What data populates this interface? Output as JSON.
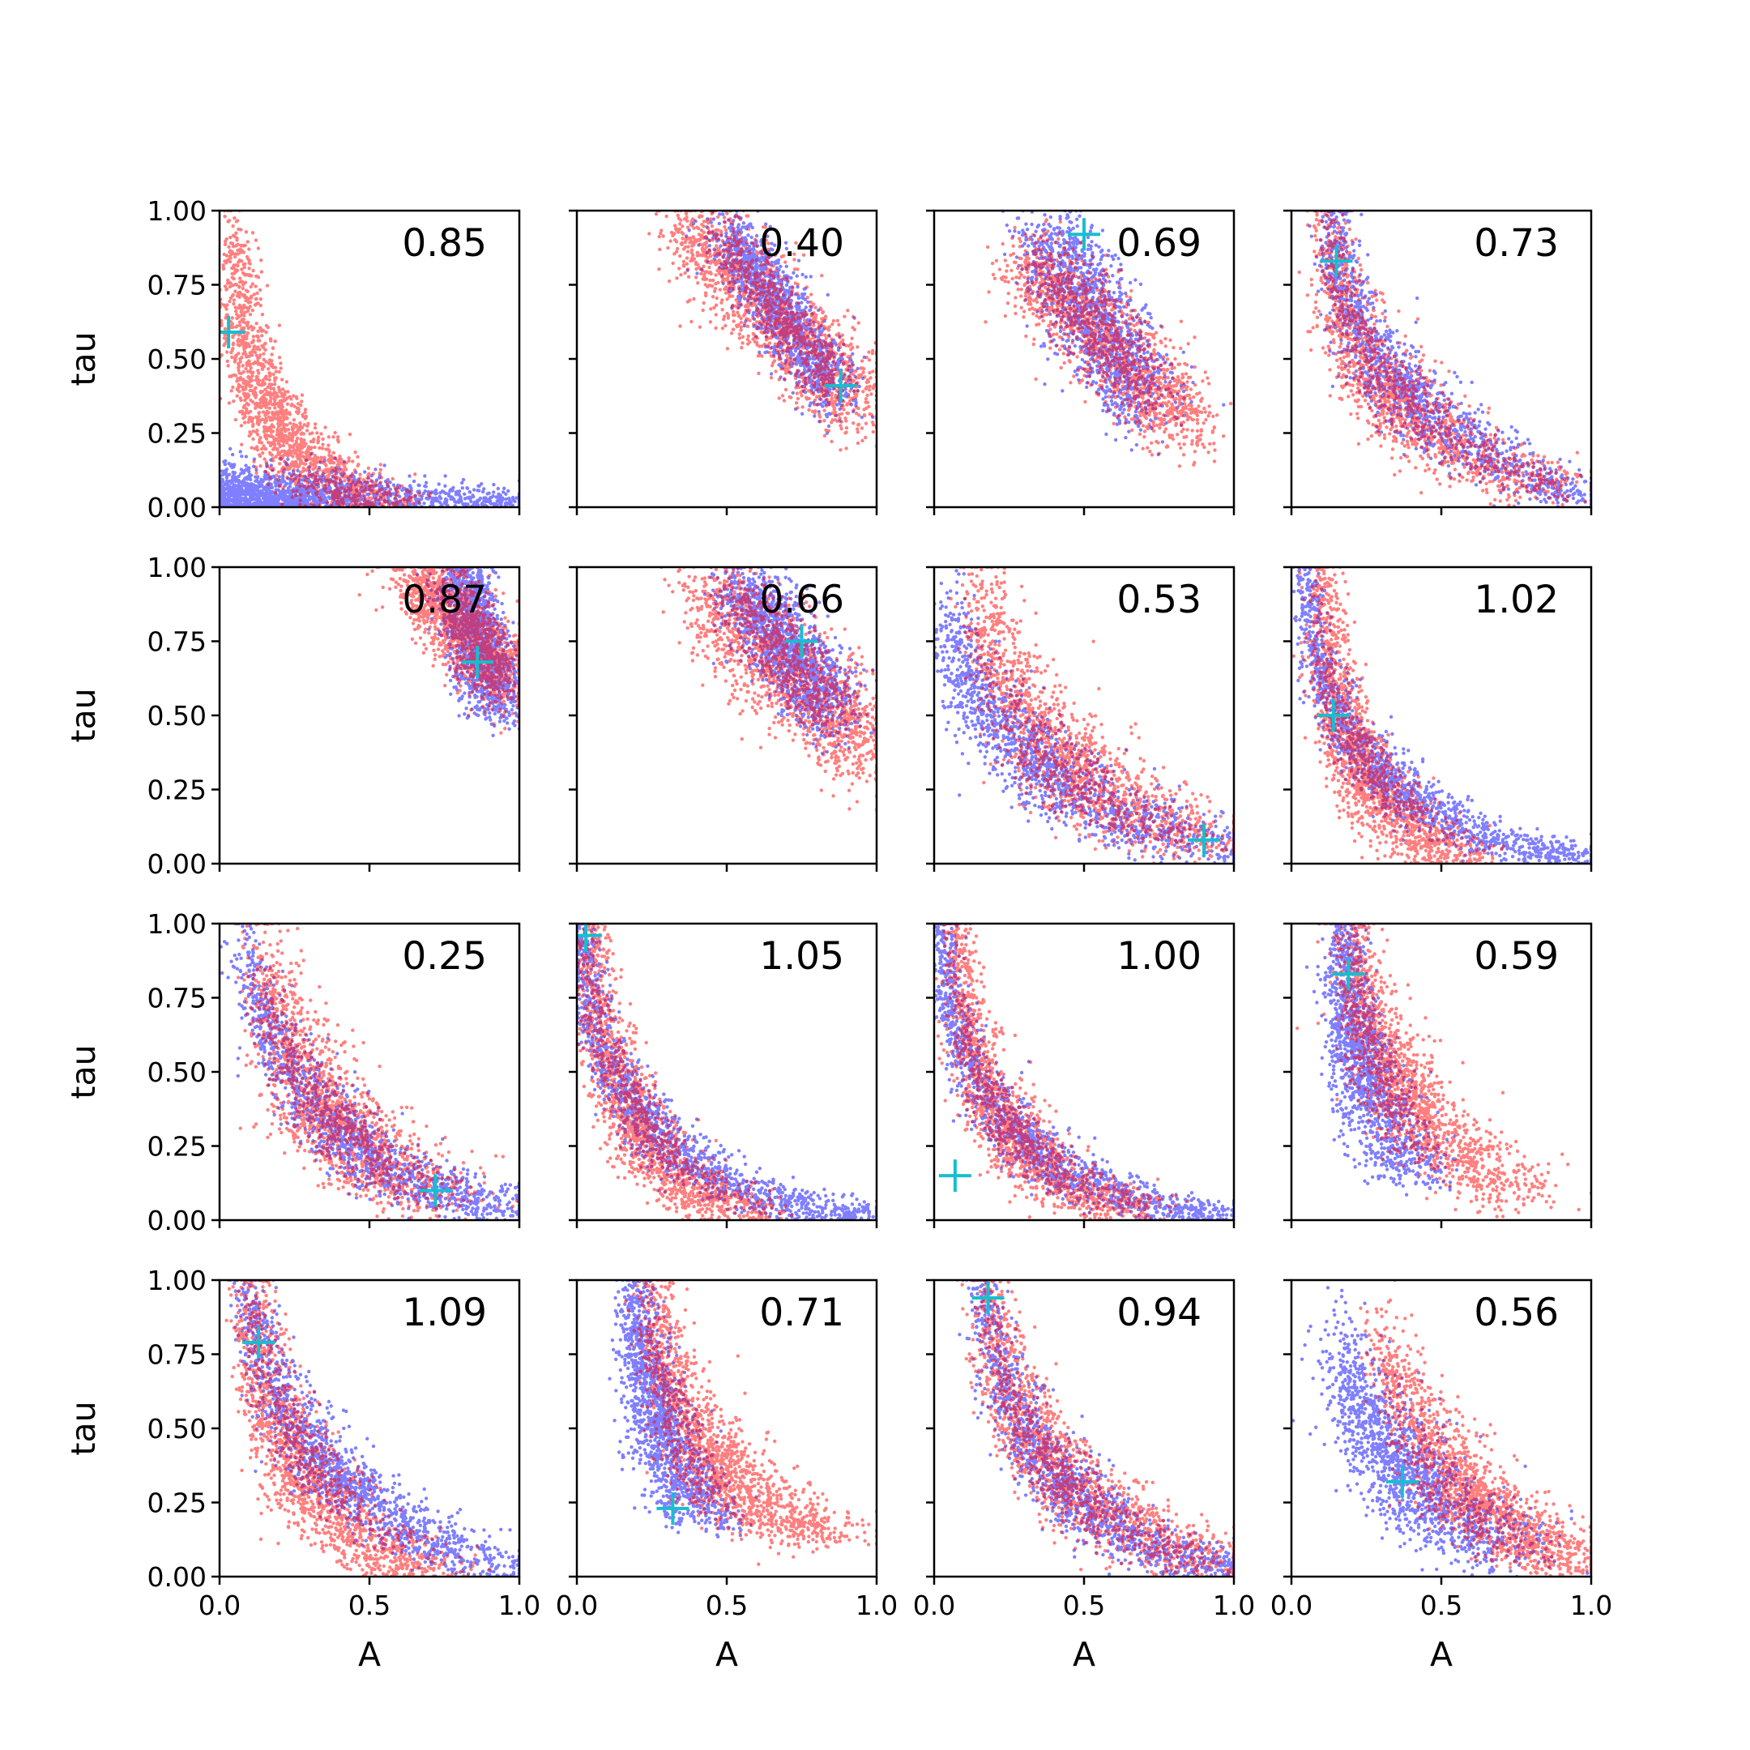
{
  "chart_data": {
    "type": "scatter",
    "layout": "4x4 grid of subplots, shared axes",
    "xlabel": "A",
    "ylabel": "tau",
    "xlim": [
      0.0,
      1.0
    ],
    "ylim": [
      0.0,
      1.0
    ],
    "x_ticks": [
      "0.0",
      "0.5",
      "1.0"
    ],
    "y_ticks": [
      "0.00",
      "0.25",
      "0.50",
      "0.75",
      "1.00"
    ],
    "grid": false,
    "legend": "none",
    "colors": {
      "series_a": "#0000ff",
      "series_b": "#ff0000",
      "marker": "#17becf"
    },
    "panel_label_placement": "top-right",
    "panels": [
      {
        "value": "0.85",
        "marker": [
          0.03,
          0.59
        ],
        "blue": {
          "shape": "L",
          "ax": 0.01,
          "ay": 0.01,
          "bx": 1.0,
          "by": 0.01,
          "knee": [
            0.05,
            0.08
          ],
          "spread": 0.04
        },
        "red": {
          "shape": "L",
          "ax": 0.05,
          "ay": 0.9,
          "bx": 0.55,
          "by": 0.02,
          "knee": [
            0.09,
            0.1
          ],
          "spread": 0.05
        }
      },
      {
        "value": "0.40",
        "marker": [
          0.88,
          0.41
        ],
        "blue": {
          "shape": "band",
          "ax": 0.5,
          "ay": 0.92,
          "bx": 0.87,
          "by": 0.38,
          "spread": 0.05
        },
        "red": {
          "shape": "band",
          "ax": 0.38,
          "ay": 0.95,
          "bx": 0.95,
          "by": 0.33,
          "spread": 0.07
        }
      },
      {
        "value": "0.69",
        "marker": [
          0.5,
          0.92
        ],
        "blue": {
          "shape": "band",
          "ax": 0.38,
          "ay": 0.9,
          "bx": 0.7,
          "by": 0.35,
          "spread": 0.07
        },
        "red": {
          "shape": "band",
          "ax": 0.33,
          "ay": 0.82,
          "bx": 0.85,
          "by": 0.27,
          "spread": 0.07
        }
      },
      {
        "value": "0.73",
        "marker": [
          0.15,
          0.83
        ],
        "blue": {
          "shape": "L",
          "ax": 0.14,
          "ay": 0.98,
          "bx": 1.0,
          "by": 0.03,
          "knee": [
            0.16,
            0.3
          ],
          "spread": 0.05
        },
        "red": {
          "shape": "L",
          "ax": 0.12,
          "ay": 0.95,
          "bx": 0.9,
          "by": 0.06,
          "knee": [
            0.17,
            0.25
          ],
          "spread": 0.06
        }
      },
      {
        "value": "0.87",
        "marker": [
          0.86,
          0.68
        ],
        "blue": {
          "shape": "band",
          "ax": 0.8,
          "ay": 0.97,
          "bx": 0.92,
          "by": 0.55,
          "spread": 0.05
        },
        "red": {
          "shape": "band",
          "ax": 0.66,
          "ay": 0.97,
          "bx": 0.98,
          "by": 0.6,
          "spread": 0.06
        }
      },
      {
        "value": "0.66",
        "marker": [
          0.75,
          0.75
        ],
        "blue": {
          "shape": "band",
          "ax": 0.55,
          "ay": 0.93,
          "bx": 0.86,
          "by": 0.5,
          "spread": 0.06
        },
        "red": {
          "shape": "band",
          "ax": 0.45,
          "ay": 0.9,
          "bx": 0.98,
          "by": 0.38,
          "spread": 0.08
        }
      },
      {
        "value": "0.53",
        "marker": [
          0.9,
          0.08
        ],
        "blue": {
          "shape": "L",
          "ax": 0.05,
          "ay": 0.8,
          "bx": 1.0,
          "by": 0.05,
          "knee": [
            0.25,
            0.2
          ],
          "spread": 0.06
        },
        "red": {
          "shape": "L",
          "ax": 0.15,
          "ay": 0.9,
          "bx": 0.95,
          "by": 0.08,
          "knee": [
            0.32,
            0.22
          ],
          "spread": 0.07
        }
      },
      {
        "value": "1.02",
        "marker": [
          0.14,
          0.5
        ],
        "blue": {
          "shape": "L",
          "ax": 0.05,
          "ay": 0.98,
          "bx": 1.0,
          "by": 0.02,
          "knee": [
            0.08,
            0.1
          ],
          "spread": 0.04
        },
        "red": {
          "shape": "L",
          "ax": 0.1,
          "ay": 0.98,
          "bx": 0.55,
          "by": 0.03,
          "knee": [
            0.15,
            0.15
          ],
          "spread": 0.05
        }
      },
      {
        "value": "0.25",
        "marker": [
          0.72,
          0.1
        ],
        "blue": {
          "shape": "L",
          "ax": 0.08,
          "ay": 0.9,
          "bx": 1.0,
          "by": 0.05,
          "knee": [
            0.3,
            0.1
          ],
          "spread": 0.05
        },
        "red": {
          "shape": "L",
          "ax": 0.15,
          "ay": 0.88,
          "bx": 0.75,
          "by": 0.08,
          "knee": [
            0.28,
            0.25
          ],
          "spread": 0.07
        }
      },
      {
        "value": "1.05",
        "marker": [
          0.03,
          0.96
        ],
        "blue": {
          "shape": "L",
          "ax": 0.02,
          "ay": 0.99,
          "bx": 1.0,
          "by": 0.02,
          "knee": [
            0.05,
            0.05
          ],
          "spread": 0.04
        },
        "red": {
          "shape": "L",
          "ax": 0.05,
          "ay": 0.98,
          "bx": 0.6,
          "by": 0.03,
          "knee": [
            0.1,
            0.1
          ],
          "spread": 0.05
        }
      },
      {
        "value": "1.00",
        "marker": [
          0.07,
          0.15
        ],
        "blue": {
          "shape": "L",
          "ax": 0.03,
          "ay": 0.98,
          "bx": 1.0,
          "by": 0.02,
          "knee": [
            0.06,
            0.06
          ],
          "spread": 0.04
        },
        "red": {
          "shape": "L",
          "ax": 0.07,
          "ay": 0.98,
          "bx": 0.7,
          "by": 0.04,
          "knee": [
            0.12,
            0.1
          ],
          "spread": 0.05
        }
      },
      {
        "value": "0.59",
        "marker": [
          0.19,
          0.83
        ],
        "blue": {
          "shape": "L",
          "ax": 0.17,
          "ay": 0.98,
          "bx": 0.4,
          "by": 0.15,
          "knee": [
            0.2,
            0.5
          ],
          "spread": 0.05
        },
        "red": {
          "shape": "L",
          "ax": 0.2,
          "ay": 0.98,
          "bx": 0.78,
          "by": 0.08,
          "knee": [
            0.25,
            0.35
          ],
          "spread": 0.06
        }
      },
      {
        "value": "1.09",
        "marker": [
          0.13,
          0.79
        ],
        "blue": {
          "shape": "L",
          "ax": 0.1,
          "ay": 0.98,
          "bx": 1.0,
          "by": 0.03,
          "knee": [
            0.2,
            0.2
          ],
          "spread": 0.05
        },
        "red": {
          "shape": "L",
          "ax": 0.1,
          "ay": 0.96,
          "bx": 0.7,
          "by": 0.02,
          "knee": [
            0.18,
            0.18
          ],
          "spread": 0.06
        }
      },
      {
        "value": "0.71",
        "marker": [
          0.32,
          0.23
        ],
        "blue": {
          "shape": "L",
          "ax": 0.2,
          "ay": 0.98,
          "bx": 0.45,
          "by": 0.18,
          "knee": [
            0.24,
            0.45
          ],
          "spread": 0.05
        },
        "red": {
          "shape": "L",
          "ax": 0.25,
          "ay": 0.95,
          "bx": 0.85,
          "by": 0.15,
          "knee": [
            0.35,
            0.25
          ],
          "spread": 0.06
        }
      },
      {
        "value": "0.94",
        "marker": [
          0.18,
          0.94
        ],
        "blue": {
          "shape": "L",
          "ax": 0.15,
          "ay": 0.98,
          "bx": 1.0,
          "by": 0.03,
          "knee": [
            0.3,
            0.12
          ],
          "spread": 0.05
        },
        "red": {
          "shape": "L",
          "ax": 0.17,
          "ay": 0.95,
          "bx": 0.95,
          "by": 0.05,
          "knee": [
            0.3,
            0.2
          ],
          "spread": 0.06
        }
      },
      {
        "value": "0.56",
        "marker": [
          0.37,
          0.32
        ],
        "blue": {
          "shape": "L",
          "ax": 0.15,
          "ay": 0.75,
          "bx": 0.75,
          "by": 0.08,
          "knee": [
            0.35,
            0.28
          ],
          "spread": 0.07
        },
        "red": {
          "shape": "L",
          "ax": 0.3,
          "ay": 0.8,
          "bx": 1.0,
          "by": 0.06,
          "knee": [
            0.55,
            0.12
          ],
          "spread": 0.06
        }
      }
    ]
  }
}
